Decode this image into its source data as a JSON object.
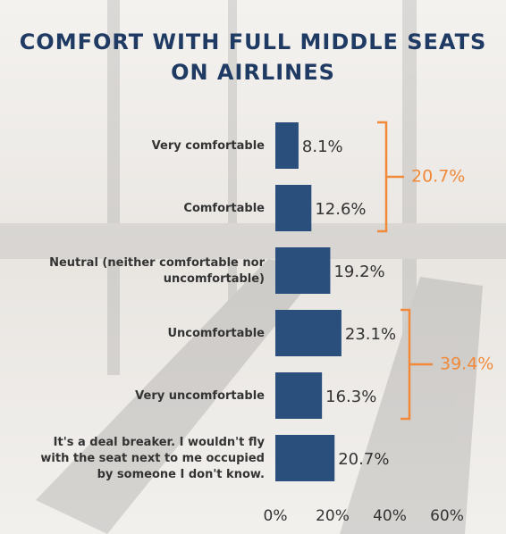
{
  "chart_data": {
    "type": "bar",
    "orientation": "horizontal",
    "title": "COMFORT WITH FULL MIDDLE SEATS ON AIRLINES",
    "categories": [
      "Very comfortable",
      "Comfortable",
      "Neutral (neither comfortable nor uncomfortable)",
      "Uncomfortable",
      "Very uncomfortable",
      "It's a deal breaker. I wouldn't fly with the seat next to me occupied by someone I don't know."
    ],
    "values": [
      8.1,
      12.6,
      19.2,
      23.1,
      16.3,
      20.7
    ],
    "value_labels": [
      "8.1%",
      "12.6%",
      "19.2%",
      "23.1%",
      "16.3%",
      "20.7%"
    ],
    "color": "#2a4f7c",
    "xlim": [
      0,
      60
    ],
    "xticks": [
      {
        "value": 0,
        "label": "0%"
      },
      {
        "value": 20,
        "label": "20%"
      },
      {
        "value": 40,
        "label": "40%"
      },
      {
        "value": 60,
        "label": "60%"
      }
    ],
    "annotations": [
      "20.7%",
      "39.4%"
    ],
    "annotation_color": "#f08a3a",
    "grid": false
  }
}
